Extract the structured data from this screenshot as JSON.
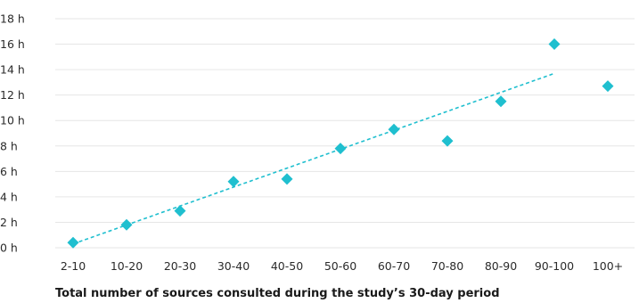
{
  "chart_data": {
    "type": "scatter",
    "title": "",
    "xlabel": "Total number of sources consulted during the study’s 30-day period",
    "ylabel": "",
    "categories": [
      "2-10",
      "10-20",
      "20-30",
      "30-40",
      "40-50",
      "50-60",
      "60-70",
      "70-80",
      "80-90",
      "90-100",
      "100+"
    ],
    "y_ticks": [
      "0 h",
      "2 h",
      "4 h",
      "6 h",
      "8 h",
      "10 h",
      "12 h",
      "14 h",
      "16 h",
      "18 h"
    ],
    "ylim": [
      0,
      18
    ],
    "grid": true,
    "legend": "none",
    "series": [
      {
        "values": [
          0.4,
          1.8,
          2.9,
          5.2,
          5.4,
          7.8,
          9.3,
          8.4,
          11.5,
          16.0,
          12.7
        ],
        "marker": "diamond",
        "color": "#1fbfcf"
      }
    ],
    "trendline": {
      "style": "dashed",
      "color": "#1fbfcf",
      "start": {
        "category": "2-10",
        "value": 0.3
      },
      "end": {
        "category": "90-100",
        "value": 13.7
      }
    }
  }
}
